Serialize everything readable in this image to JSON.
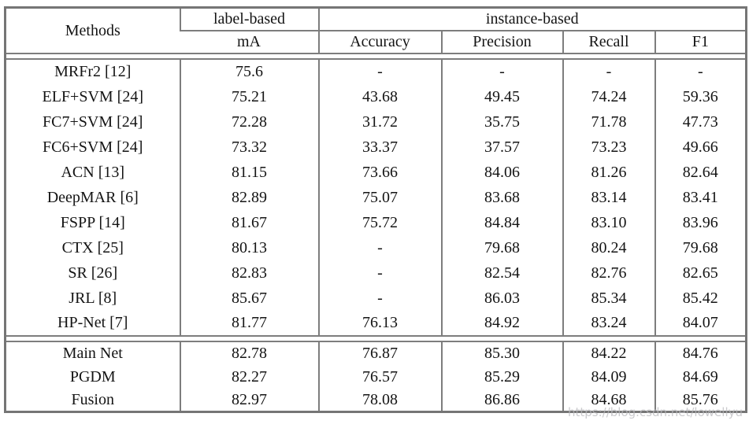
{
  "watermark": "https://blog.csdn.net/lowellyu",
  "table": {
    "header": {
      "methods_label": "Methods",
      "group_label_based": "label-based",
      "group_instance_based": "instance-based",
      "sub_columns": [
        "mA",
        "Accuracy",
        "Precision",
        "Recall",
        "F1"
      ]
    },
    "sections": [
      {
        "name": "published-methods",
        "rows": [
          {
            "cells": [
              "MRFr2 [12]",
              "75.6",
              "-",
              "-",
              "-",
              "-"
            ],
            "bold": []
          },
          {
            "cells": [
              "ELF+SVM [24]",
              "75.21",
              "43.68",
              "49.45",
              "74.24",
              "59.36"
            ],
            "bold": []
          },
          {
            "cells": [
              "FC7+SVM [24]",
              "72.28",
              "31.72",
              "35.75",
              "71.78",
              "47.73"
            ],
            "bold": []
          },
          {
            "cells": [
              "FC6+SVM [24]",
              "73.32",
              "33.37",
              "37.57",
              "73.23",
              "49.66"
            ],
            "bold": []
          },
          {
            "cells": [
              "ACN [13]",
              "81.15",
              "73.66",
              "84.06",
              "81.26",
              "82.64"
            ],
            "bold": []
          },
          {
            "cells": [
              "DeepMAR [6]",
              "82.89",
              "75.07",
              "83.68",
              "83.14",
              "83.41"
            ],
            "bold": []
          },
          {
            "cells": [
              "FSPP [14]",
              "81.67",
              "75.72",
              "84.84",
              "83.10",
              "83.96"
            ],
            "bold": []
          },
          {
            "cells": [
              "CTX [25]",
              "80.13",
              "-",
              "79.68",
              "80.24",
              "79.68"
            ],
            "bold": []
          },
          {
            "cells": [
              "SR [26]",
              "82.83",
              "-",
              "82.54",
              "82.76",
              "82.65"
            ],
            "bold": []
          },
          {
            "cells": [
              "JRL [8]",
              "85.67",
              "-",
              "86.03",
              "85.34",
              "85.42"
            ],
            "bold": [
              1,
              3,
              4,
              5
            ]
          },
          {
            "cells": [
              "HP-Net [7]",
              "81.77",
              "76.13",
              "84.92",
              "83.24",
              "84.07"
            ],
            "bold": []
          }
        ]
      },
      {
        "name": "proposed-methods",
        "rows": [
          {
            "cells": [
              "Main Net",
              "82.78",
              "76.87",
              "85.30",
              "84.22",
              "84.76"
            ],
            "bold": [
              2
            ]
          },
          {
            "cells": [
              "PGDM",
              "82.27",
              "76.57",
              "85.29",
              "84.09",
              "84.69"
            ],
            "bold": []
          },
          {
            "cells": [
              "Fusion",
              "82.97",
              "78.08",
              "86.86",
              "84.68",
              "85.76"
            ],
            "bold": [
              1,
              2,
              3,
              4,
              5
            ]
          }
        ]
      }
    ]
  }
}
